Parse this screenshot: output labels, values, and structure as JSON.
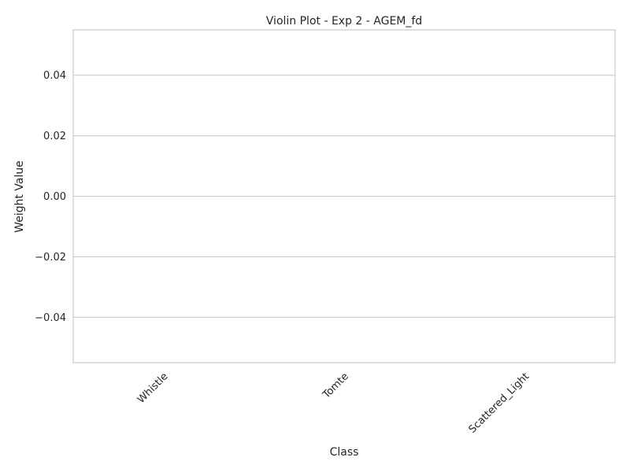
{
  "chart_data": {
    "type": "violin",
    "title": "Violin Plot - Exp 2 - AGEM_fd",
    "xlabel": "Class",
    "ylabel": "Weight Value",
    "categories": [
      "Whistle",
      "Tomte",
      "Scattered_Light"
    ],
    "values": [
      [],
      [],
      []
    ],
    "ylim": [
      -0.055,
      0.055
    ],
    "yticks": [
      0.04,
      0.02,
      0.0,
      -0.02,
      -0.04
    ],
    "ytick_labels": [
      "0.04",
      "0.02",
      "0.00",
      "−0.02",
      "−0.04"
    ],
    "grid": "horizontal",
    "xtick_rotation": 45,
    "colors": {
      "grid": "#cccccc",
      "frame": "#cccccc",
      "text": "#262626",
      "background": "#ffffff"
    }
  }
}
